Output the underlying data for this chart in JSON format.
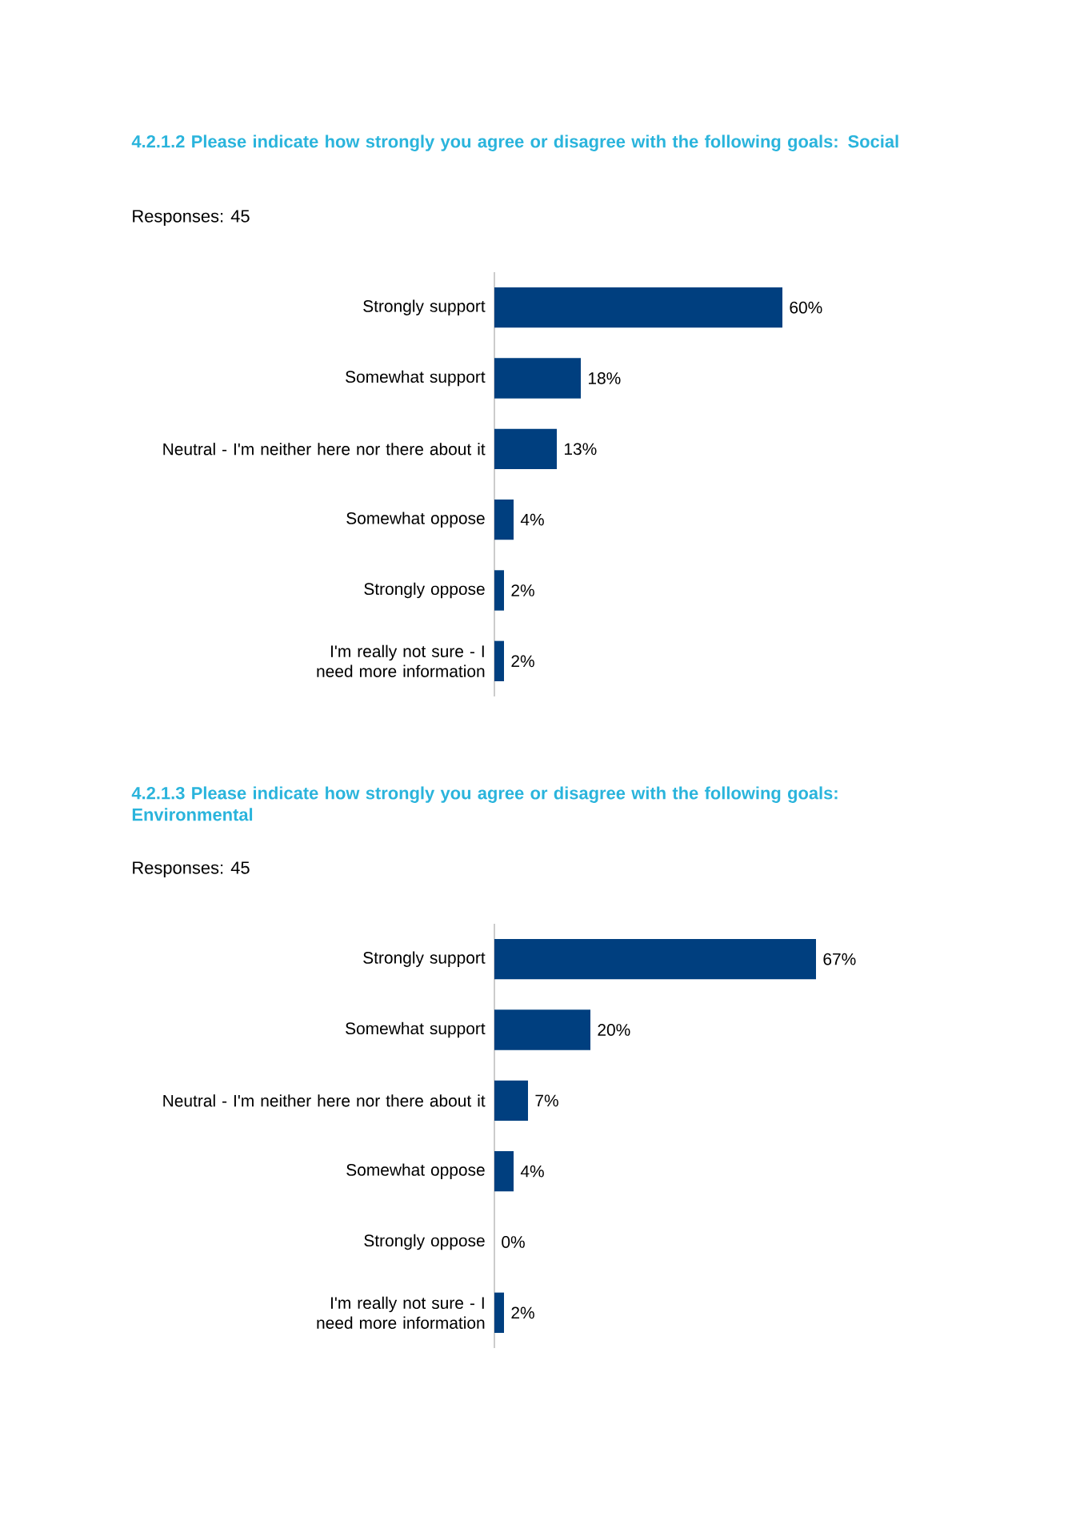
{
  "chart_data": [
    {
      "type": "bar",
      "orientation": "horizontal",
      "title": "4.2.1.2  Please indicate how strongly you agree or disagree with the following goals: Social",
      "subtitle": "Responses: 45",
      "categories": [
        "Strongly support",
        "Somewhat support",
        "Neutral - I'm neither here nor there about it",
        "Somewhat oppose",
        "Strongly oppose",
        "I'm really not sure - I need more information"
      ],
      "values": [
        60,
        18,
        13,
        4,
        2,
        2
      ],
      "value_labels": [
        "60%",
        "18%",
        "13%",
        "4%",
        "2%",
        "2%"
      ],
      "color": "#003f7f"
    },
    {
      "type": "bar",
      "orientation": "horizontal",
      "title": "4.2.1.3  Please indicate how strongly you agree or disagree with the following goals: Environmental",
      "subtitle": "Responses: 45",
      "categories": [
        "Strongly support",
        "Somewhat support",
        "Neutral - I'm neither here nor there about it",
        "Somewhat oppose",
        "Strongly oppose",
        "I'm really not sure - I need more information"
      ],
      "values": [
        67,
        20,
        7,
        4,
        0,
        2
      ],
      "value_labels": [
        "67%",
        "20%",
        "7%",
        "4%",
        "0%",
        "2%"
      ],
      "color": "#003f7f"
    }
  ]
}
